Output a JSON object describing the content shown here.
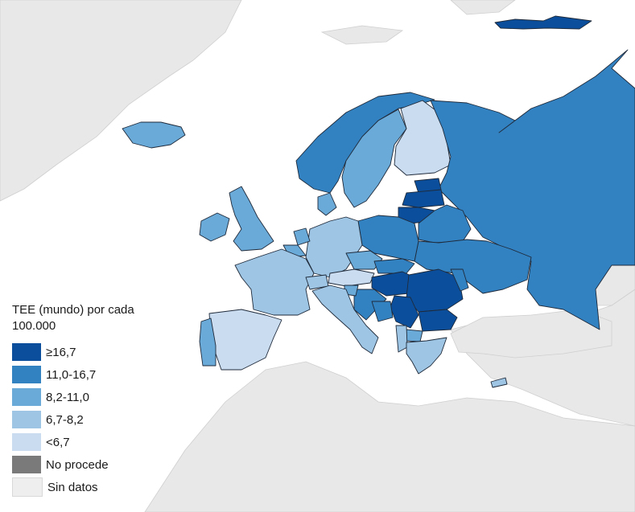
{
  "legend": {
    "title": "TEE (mundo) por cada 100.000",
    "items": [
      {
        "label": "≥16,7",
        "color": "#0b4f9c"
      },
      {
        "label": "11,0-16,7",
        "color": "#3282c2"
      },
      {
        "label": "8,2-11,0",
        "color": "#6aaad9"
      },
      {
        "label": "6,7-8,2",
        "color": "#9ec6e4"
      },
      {
        "label": "<6,7",
        "color": "#c9dcf0"
      },
      {
        "label": "No procede",
        "color": "#7a7a7a"
      },
      {
        "label": "Sin datos",
        "color": "#eeeeee"
      }
    ]
  },
  "regions": [
    {
      "name": "iceland",
      "category": "8,2-11,0"
    },
    {
      "name": "norway",
      "category": "11,0-16,7"
    },
    {
      "name": "sweden",
      "category": "8,2-11,0"
    },
    {
      "name": "finland",
      "category": "<6,7"
    },
    {
      "name": "russia",
      "category": "11,0-16,7"
    },
    {
      "name": "estonia",
      "category": "≥16,7"
    },
    {
      "name": "latvia",
      "category": "≥16,7"
    },
    {
      "name": "lithuania",
      "category": "≥16,7"
    },
    {
      "name": "belarus",
      "category": "11,0-16,7"
    },
    {
      "name": "ukraine",
      "category": "11,0-16,7"
    },
    {
      "name": "poland",
      "category": "11,0-16,7"
    },
    {
      "name": "germany",
      "category": "6,7-8,2"
    },
    {
      "name": "denmark",
      "category": "8,2-11,0"
    },
    {
      "name": "united-kingdom",
      "category": "8,2-11,0"
    },
    {
      "name": "ireland",
      "category": "8,2-11,0"
    },
    {
      "name": "netherlands",
      "category": "8,2-11,0"
    },
    {
      "name": "belgium",
      "category": "8,2-11,0"
    },
    {
      "name": "france",
      "category": "6,7-8,2"
    },
    {
      "name": "spain",
      "category": "<6,7"
    },
    {
      "name": "portugal",
      "category": "8,2-11,0"
    },
    {
      "name": "italy",
      "category": "6,7-8,2"
    },
    {
      "name": "switzerland",
      "category": "6,7-8,2"
    },
    {
      "name": "austria",
      "category": "<6,7"
    },
    {
      "name": "czechia",
      "category": "8,2-11,0"
    },
    {
      "name": "slovakia",
      "category": "11,0-16,7"
    },
    {
      "name": "hungary",
      "category": "≥16,7"
    },
    {
      "name": "romania",
      "category": "≥16,7"
    },
    {
      "name": "moldova",
      "category": "11,0-16,7"
    },
    {
      "name": "bulgaria",
      "category": "≥16,7"
    },
    {
      "name": "serbia",
      "category": "≥16,7"
    },
    {
      "name": "croatia",
      "category": "11,0-16,7"
    },
    {
      "name": "slovenia",
      "category": "8,2-11,0"
    },
    {
      "name": "bosnia",
      "category": "11,0-16,7"
    },
    {
      "name": "greece",
      "category": "6,7-8,2"
    },
    {
      "name": "north-macedonia",
      "category": "8,2-11,0"
    },
    {
      "name": "albania",
      "category": "6,7-8,2"
    },
    {
      "name": "cyprus",
      "category": "6,7-8,2"
    },
    {
      "name": "svalbard",
      "category": "≥16,7"
    }
  ]
}
